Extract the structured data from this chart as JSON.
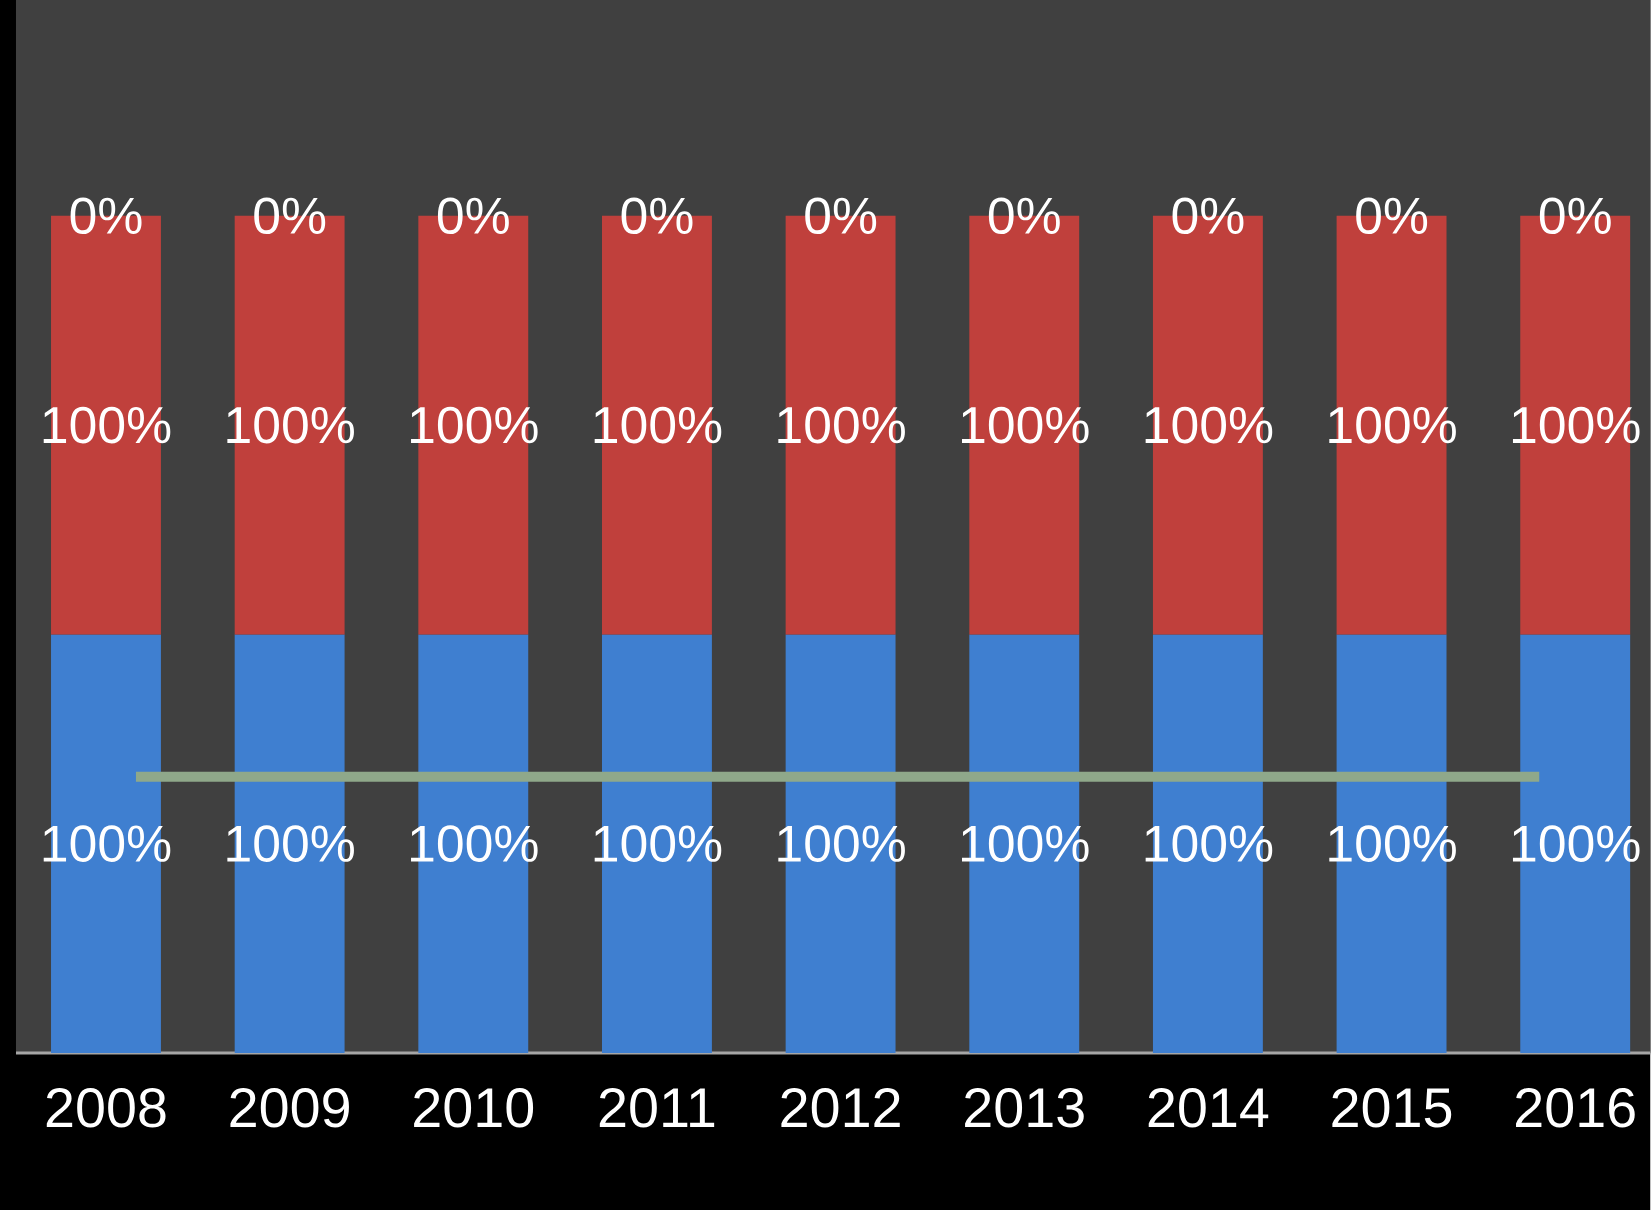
{
  "chart_data": {
    "type": "bar",
    "stacked": true,
    "categories": [
      "2008",
      "2009",
      "2010",
      "2011",
      "2012",
      "2013",
      "2014",
      "2015",
      "2016"
    ],
    "series": [
      {
        "color": "#3f7fd0",
        "values": [
          100,
          100,
          100,
          100,
          100,
          100,
          100,
          100,
          100
        ],
        "value_labels": [
          "100%",
          "100%",
          "100%",
          "100%",
          "100%",
          "100%",
          "100%",
          "100%",
          "100%"
        ]
      },
      {
        "color": "#c0403c",
        "values": [
          100,
          100,
          100,
          100,
          100,
          100,
          100,
          100,
          100
        ],
        "value_labels": [
          "100%",
          "100%",
          "100%",
          "100%",
          "100%",
          "100%",
          "100%",
          "100%",
          "100%"
        ]
      },
      {
        "color": "#d84a44",
        "values": [
          0,
          0,
          0,
          0,
          0,
          0,
          0,
          0,
          0
        ],
        "value_labels": [
          "0%",
          "0%",
          "0%",
          "0%",
          "0%",
          "0%",
          "0%",
          "0%",
          "0%"
        ]
      }
    ],
    "ref_lines": [
      {
        "axis": "y",
        "value": 66,
        "color": "#8fa88a"
      }
    ]
  }
}
